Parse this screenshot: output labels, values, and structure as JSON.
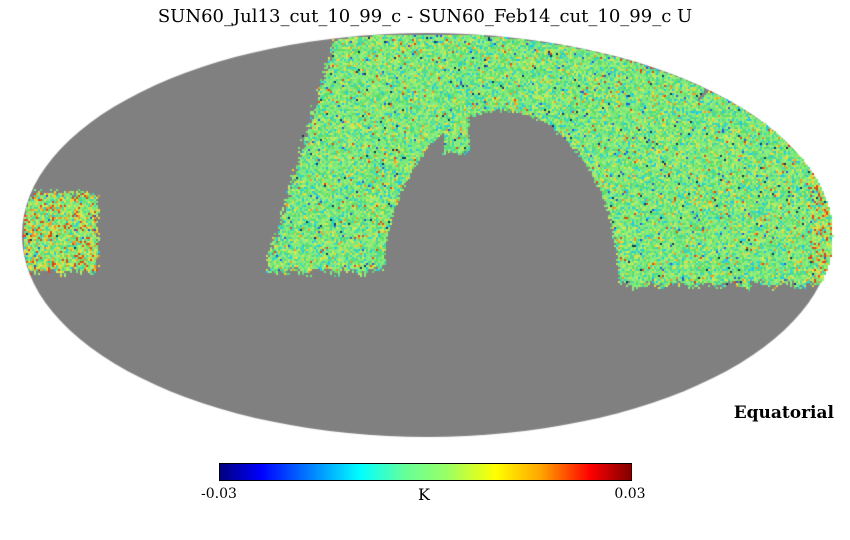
{
  "figure": {
    "title": "SUN60_Jul13_cut_10_99_c - SUN60_Feb14_cut_10_99_c U",
    "coordinate_label": "Equatorial",
    "colorbar": {
      "min_label": "-0.03",
      "max_label": "0.03",
      "unit": "K"
    }
  },
  "chart_data": {
    "type": "heatmap",
    "projection": "mollweide",
    "title": "SUN60_Jul13_cut_10_99_c - SUN60_Feb14_cut_10_99_c U",
    "coordinate_system": "Equatorial",
    "colormap": "jet",
    "colorbar_range": [
      -0.03,
      0.03
    ],
    "colorbar_ticks": [
      -0.03,
      0.03
    ],
    "units": "K",
    "masked_color": "#808080",
    "background_color": "#ffffff",
    "description": "Difference of two HEALPix Stokes-U sky maps in Mollweide projection; unmasked sky shows near-zero noise (green/cyan/yellow speckle around 0 K), large masked regions in gray: lower hemisphere band, upper-left lobe, and a central arch",
    "data_value_range_K": [
      -0.01,
      0.01
    ]
  }
}
